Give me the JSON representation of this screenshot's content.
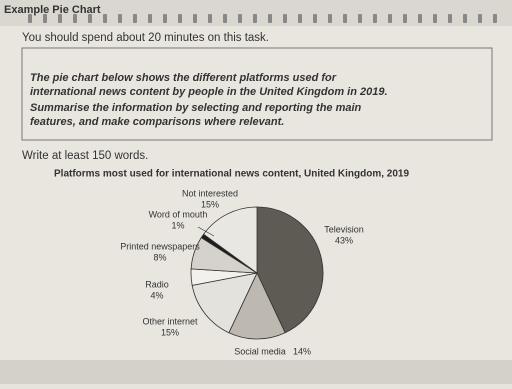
{
  "header": {
    "title": "Example Pie Chart"
  },
  "instruction": "You should spend about 20 minutes on this task.",
  "task": {
    "lines": [
      "The pie chart below shows the different platforms used for",
      "international news content by people in the United Kingdom in 2019.",
      "Summarise the information by selecting and reporting the main",
      "features, and make comparisons where relevant."
    ]
  },
  "word_count": "Write at least 150 words.",
  "chart_data": {
    "type": "pie",
    "title": "Platforms most used for international news content, United Kingdom, 2019",
    "categories": [
      "Television",
      "Social media",
      "Other internet",
      "Radio",
      "Printed newspapers",
      "Word of mouth",
      "Not interested"
    ],
    "values": [
      43,
      14,
      15,
      4,
      8,
      1,
      15
    ],
    "value_labels": [
      "43%",
      "14%",
      "15%",
      "4%",
      "8%",
      "1%",
      "15%"
    ],
    "colors": [
      "#5e5a54",
      "#bdb9b0",
      "#e4e2dc",
      "#f2f1ec",
      "#d4d2cb",
      "#1c1c1c",
      "#e9e7e1"
    ]
  }
}
